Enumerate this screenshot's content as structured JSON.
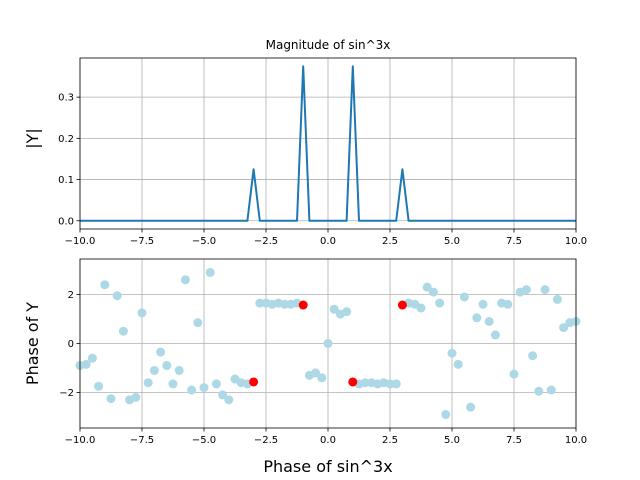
{
  "chart_data": [
    {
      "type": "line",
      "title": "Magnitude of sin^3x",
      "xlabel": "",
      "ylabel": "|Y|",
      "xlim": [
        -10,
        10
      ],
      "ylim": [
        -0.02,
        0.395
      ],
      "grid": true,
      "x_ticks": [
        -10,
        -7.5,
        -5,
        -2.5,
        0,
        2.5,
        5,
        7.5,
        10
      ],
      "x_tick_labels": [
        "−10.0",
        "−7.5",
        "−5.0",
        "−2.5",
        "0.0",
        "2.5",
        "5.0",
        "7.5",
        "10.0"
      ],
      "y_ticks": [
        0,
        0.1,
        0.2,
        0.3
      ],
      "y_tick_labels": [
        "0.0",
        "0.1",
        "0.2",
        "0.3"
      ],
      "series": [
        {
          "color": "#1f77b4",
          "x": [
            -10,
            -3.25,
            -3.0,
            -2.75,
            -1.25,
            -1.0,
            -0.75,
            0.75,
            1.0,
            1.25,
            2.75,
            3.0,
            3.25,
            10
          ],
          "y": [
            0,
            0,
            0.125,
            0,
            0,
            0.375,
            0,
            0,
            0.375,
            0,
            0,
            0.125,
            0,
            0
          ]
        }
      ]
    },
    {
      "type": "scatter",
      "title": "",
      "xlabel": "Phase of sin^3x",
      "ylabel": "Phase of Y",
      "xlim": [
        -10,
        10
      ],
      "ylim": [
        -3.45,
        3.45
      ],
      "grid": true,
      "x_ticks": [
        -10,
        -7.5,
        -5,
        -2.5,
        0,
        2.5,
        5,
        7.5,
        10
      ],
      "x_tick_labels": [
        "−10.0",
        "−7.5",
        "−5.0",
        "−2.5",
        "0.0",
        "2.5",
        "5.0",
        "7.5",
        "10.0"
      ],
      "y_ticks": [
        -2,
        0,
        2
      ],
      "y_tick_labels": [
        "−2",
        "0",
        "2"
      ],
      "series": [
        {
          "color": "#add8e6",
          "points": [
            [
              -10.0,
              -0.9
            ],
            [
              -9.75,
              -0.85
            ],
            [
              -9.5,
              -0.6
            ],
            [
              -9.25,
              -1.75
            ],
            [
              -9.0,
              2.4
            ],
            [
              -8.75,
              -2.25
            ],
            [
              -8.5,
              1.95
            ],
            [
              -8.25,
              0.5
            ],
            [
              -8.0,
              -2.3
            ],
            [
              -7.75,
              -2.2
            ],
            [
              -7.5,
              1.25
            ],
            [
              -7.25,
              -1.6
            ],
            [
              -7.0,
              -1.1
            ],
            [
              -6.75,
              -0.35
            ],
            [
              -6.5,
              -0.9
            ],
            [
              -6.25,
              -1.65
            ],
            [
              -6.0,
              -1.1
            ],
            [
              -5.75,
              2.6
            ],
            [
              -5.5,
              -1.9
            ],
            [
              -5.25,
              0.85
            ],
            [
              -5.0,
              -1.8
            ],
            [
              -4.75,
              2.9
            ],
            [
              -4.5,
              -1.65
            ],
            [
              -4.25,
              -2.1
            ],
            [
              -4.0,
              -2.3
            ],
            [
              -3.75,
              -1.45
            ],
            [
              -3.5,
              -1.6
            ],
            [
              -3.25,
              -1.65
            ],
            [
              -2.75,
              1.65
            ],
            [
              -2.5,
              1.65
            ],
            [
              -2.25,
              1.6
            ],
            [
              -2.0,
              1.65
            ],
            [
              -1.75,
              1.6
            ],
            [
              -1.5,
              1.6
            ],
            [
              -1.25,
              1.65
            ],
            [
              -0.75,
              -1.3
            ],
            [
              -0.5,
              -1.2
            ],
            [
              -0.25,
              -1.4
            ],
            [
              0.0,
              0.0
            ],
            [
              0.25,
              1.4
            ],
            [
              0.5,
              1.2
            ],
            [
              0.75,
              1.3
            ],
            [
              1.25,
              -1.65
            ],
            [
              1.5,
              -1.6
            ],
            [
              1.75,
              -1.6
            ],
            [
              2.0,
              -1.65
            ],
            [
              2.25,
              -1.6
            ],
            [
              2.5,
              -1.65
            ],
            [
              2.75,
              -1.65
            ],
            [
              3.25,
              1.65
            ],
            [
              3.5,
              1.6
            ],
            [
              3.75,
              1.45
            ],
            [
              4.0,
              2.3
            ],
            [
              4.25,
              2.1
            ],
            [
              4.5,
              1.65
            ],
            [
              4.75,
              -2.9
            ],
            [
              5.0,
              -0.4
            ],
            [
              5.25,
              -0.85
            ],
            [
              5.5,
              1.9
            ],
            [
              5.75,
              -2.6
            ],
            [
              6.0,
              1.05
            ],
            [
              6.25,
              1.6
            ],
            [
              6.5,
              0.9
            ],
            [
              6.75,
              0.35
            ],
            [
              7.0,
              1.65
            ],
            [
              7.25,
              1.6
            ],
            [
              7.5,
              -1.25
            ],
            [
              7.75,
              2.1
            ],
            [
              8.0,
              2.2
            ],
            [
              8.25,
              -0.5
            ],
            [
              8.5,
              -1.95
            ],
            [
              8.75,
              2.2
            ],
            [
              9.0,
              -1.9
            ],
            [
              9.25,
              1.8
            ],
            [
              9.5,
              0.65
            ],
            [
              9.75,
              0.85
            ],
            [
              10.0,
              0.9
            ]
          ]
        },
        {
          "color": "#ff0000",
          "points": [
            [
              -3.0,
              -1.57
            ],
            [
              -1.0,
              1.57
            ],
            [
              1.0,
              -1.57
            ],
            [
              3.0,
              1.57
            ]
          ]
        }
      ]
    }
  ]
}
